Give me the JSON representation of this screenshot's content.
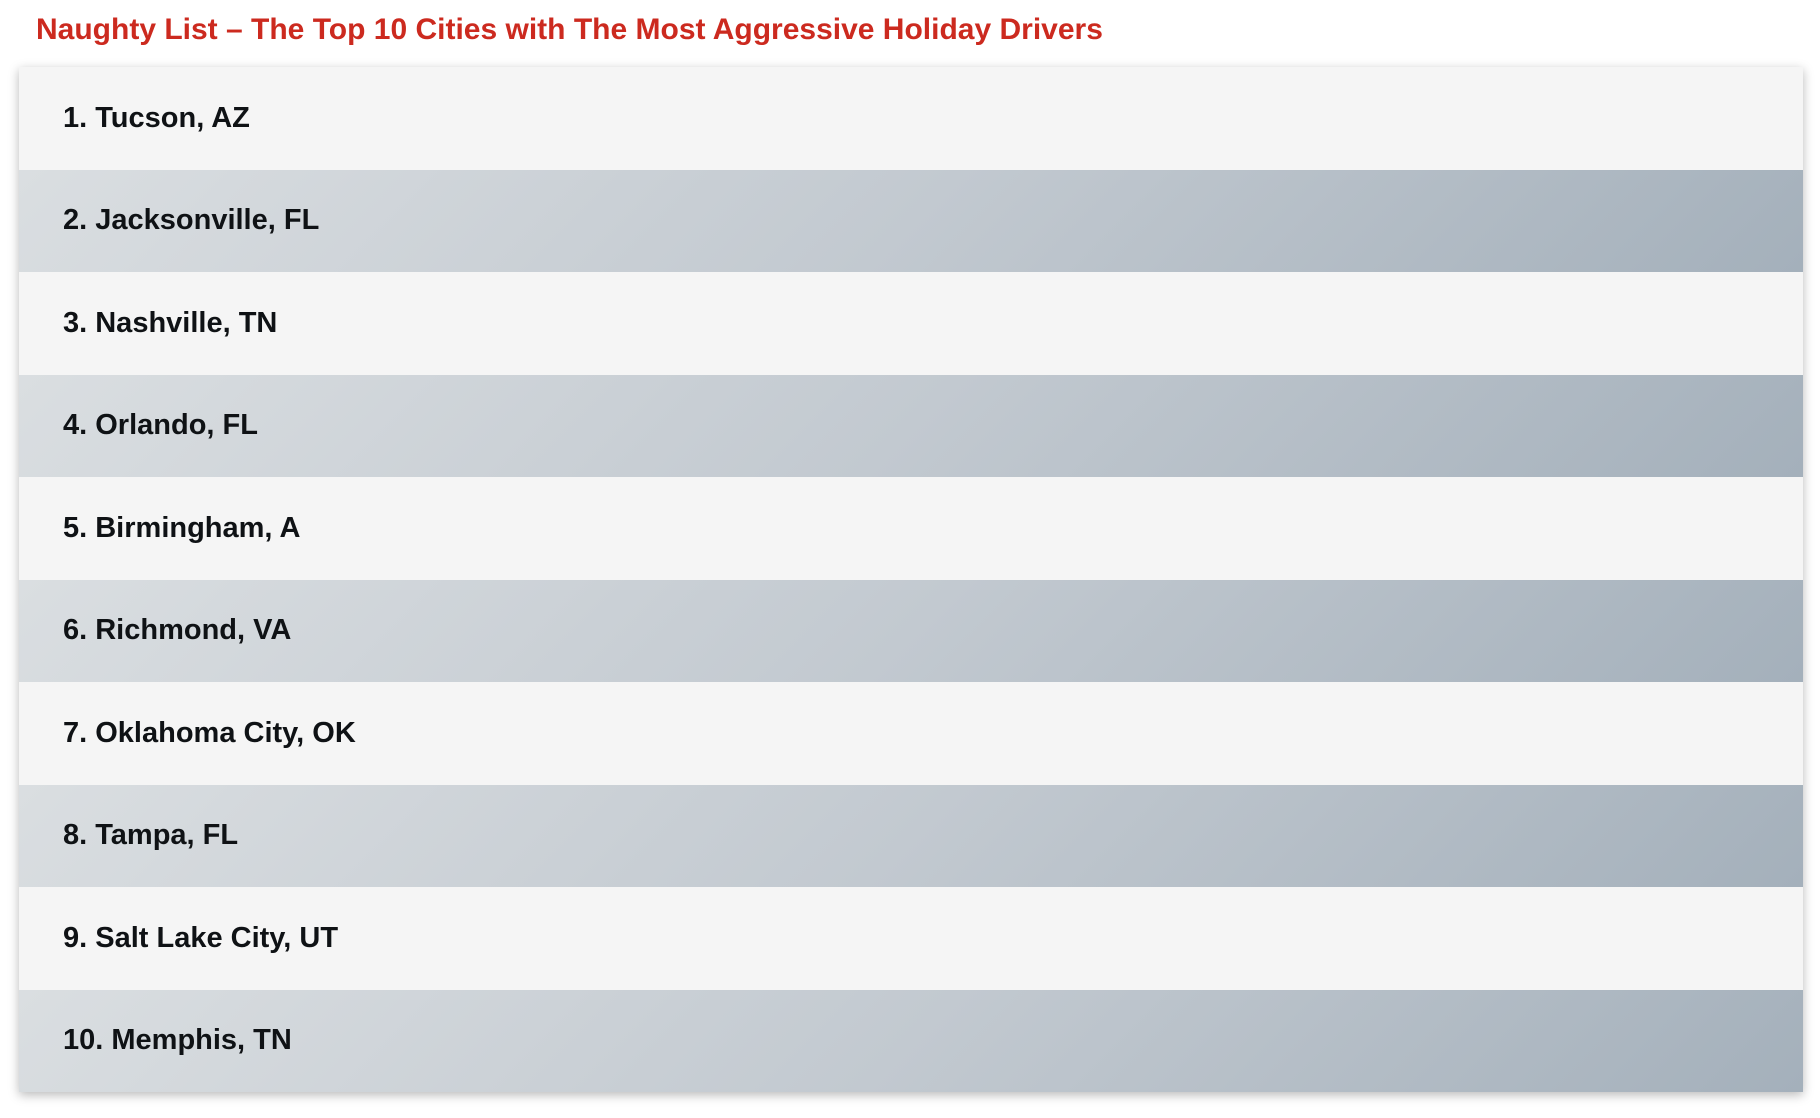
{
  "title": "Naughty List – The Top 10 Cities with The Most Aggressive Holiday Drivers",
  "cities": [
    "1. Tucson, AZ",
    "2. Jacksonville, FL",
    "3. Nashville, TN",
    "4. Orlando, FL",
    "5. Birmingham, A",
    "6. Richmond, VA",
    "7. Oklahoma City, OK",
    "8. Tampa, FL",
    "9. Salt Lake City, UT",
    "10. Memphis, TN"
  ],
  "colors": {
    "title": "#cc2a1f",
    "row_light": "#f5f5f5",
    "row_dark_start": "#dadee1",
    "row_dark_end": "#a4b0bb",
    "text": "#0f1215"
  }
}
